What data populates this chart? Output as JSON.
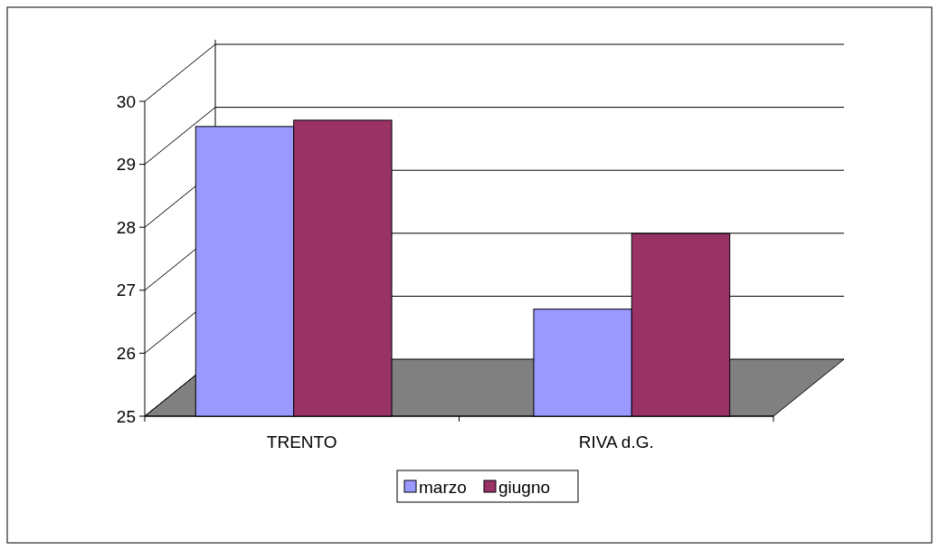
{
  "chart_data": {
    "type": "bar",
    "categories": [
      "TRENTO",
      "RIVA d.G."
    ],
    "series": [
      {
        "name": "marzo",
        "color": "#9999ff",
        "values": [
          29.6,
          26.7
        ]
      },
      {
        "name": "giugno",
        "color": "#993366",
        "values": [
          29.7,
          27.9
        ]
      }
    ],
    "ylim": [
      25,
      30
    ],
    "yticks": [
      25,
      26,
      27,
      28,
      29,
      30
    ],
    "grid": "y",
    "legend": "bottom"
  }
}
